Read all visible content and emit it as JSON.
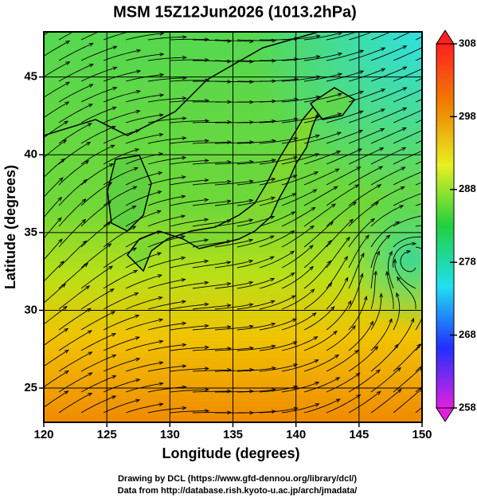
{
  "chart_data": {
    "type": "map",
    "title": "MSM 15Z12Jun2026 (1013.2hPa)",
    "xlabel": "Longitude (degrees)",
    "ylabel": "Latitude  (degrees)",
    "xlim": [
      120,
      150
    ],
    "xticks": [
      120,
      125,
      130,
      135,
      140,
      145,
      150
    ],
    "ylim": [
      22.8,
      47.9
    ],
    "yticks": [
      25,
      30,
      35,
      40,
      45
    ],
    "grid": true,
    "colorbar": {
      "lim": [
        258,
        308
      ],
      "ticks": [
        258,
        268,
        278,
        288,
        298,
        308
      ],
      "colors": [
        "#e020e0",
        "#2030ff",
        "#20e0f0",
        "#20d040",
        "#e8f020",
        "#f08000",
        "#ff2020"
      ]
    },
    "notes": [
      "Drawing by DCL (https://www.gfd-dennou.org/library/dcl/)",
      "Data from http://database.rish.kyoto-u.ac.jp/arch/jmadata/"
    ]
  }
}
